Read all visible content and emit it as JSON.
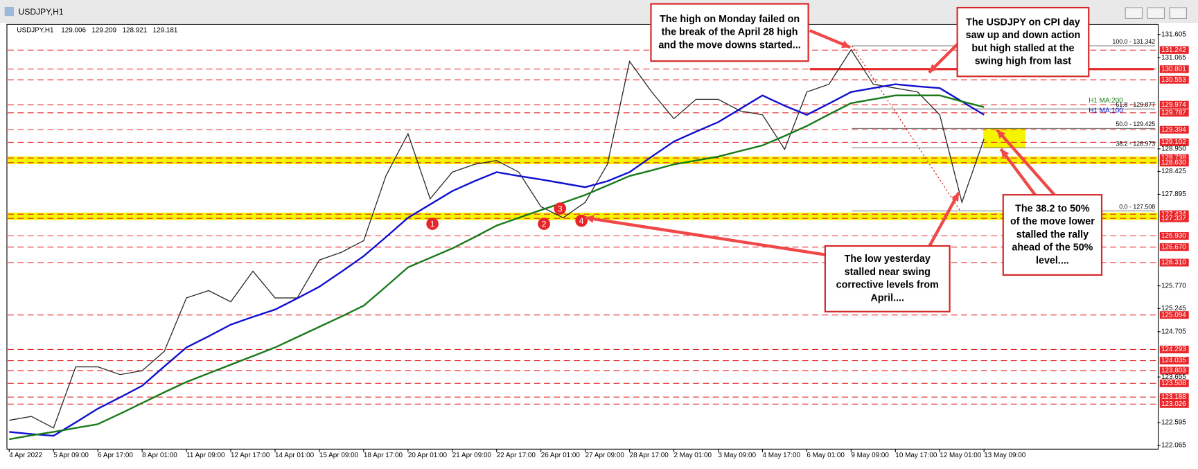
{
  "window_title": "USDJPY,H1",
  "chart_data": {
    "type": "line",
    "header": "USDJPY,H1",
    "ohlc": [
      129.006,
      129.209,
      128.921,
      129.181
    ],
    "categories": [
      "4 Apr 2022",
      null,
      "5 Apr 09:00",
      null,
      "6 Apr 17:00",
      null,
      "8 Apr 01:00",
      null,
      "11 Apr 09:00",
      null,
      "12 Apr 17:00",
      null,
      "14 Apr 01:00",
      null,
      "15 Apr 09:00",
      null,
      "18 Apr 17:00",
      null,
      "20 Apr 01:00",
      null,
      "21 Apr 09:00",
      null,
      "22 Apr 17:00",
      null,
      "26 Apr 01:00",
      null,
      "27 Apr 09:00",
      null,
      "28 Apr 17:00",
      null,
      "2 May 01:00",
      null,
      "3 May 09:00",
      null,
      "4 May 17:00",
      null,
      "6 May 01:00",
      null,
      "9 May 09:00",
      null,
      "10 May 17:00",
      null,
      "12 May 01:00",
      null,
      "13 May 09:00"
    ],
    "series": [
      {
        "name": "USDJPY,H1",
        "color": "#2a2a2a",
        "values": [
          122.65,
          122.74,
          122.47,
          123.89,
          123.89,
          123.71,
          123.8,
          124.25,
          125.49,
          125.66,
          125.4,
          126.11,
          125.49,
          125.49,
          126.37,
          126.55,
          126.82,
          128.32,
          129.3,
          127.79,
          128.41,
          128.59,
          128.68,
          128.41,
          127.61,
          127.35,
          127.71,
          128.59,
          130.98,
          130.27,
          129.65,
          130.1,
          130.1,
          129.83,
          129.74,
          128.94,
          130.27,
          130.45,
          131.25,
          130.45,
          130.36,
          130.27,
          129.74,
          127.71,
          129.181
        ]
      },
      {
        "name": "H1 MA:100",
        "color": "#1010d0",
        "values": [
          122.38,
          122.33,
          122.29,
          122.6,
          122.92,
          123.18,
          123.45,
          123.9,
          124.34,
          124.6,
          124.87,
          125.05,
          125.22,
          125.48,
          125.75,
          126.1,
          126.46,
          126.9,
          127.35,
          127.66,
          127.97,
          128.2,
          128.41,
          128.32,
          128.24,
          128.15,
          128.06,
          128.2,
          128.41,
          128.77,
          129.12,
          129.35,
          129.57,
          129.88,
          130.19,
          129.95,
          129.74,
          130.0,
          130.27,
          130.36,
          130.45,
          130.4,
          130.36,
          130.05,
          129.74
        ]
      },
      {
        "name": "H1 MA:200",
        "color": "#1a7a1a",
        "values": [
          122.21,
          122.3,
          122.38,
          122.47,
          122.56,
          122.8,
          123.05,
          123.3,
          123.54,
          123.74,
          123.94,
          124.14,
          124.34,
          124.58,
          124.82,
          125.06,
          125.31,
          125.75,
          126.2,
          126.42,
          126.64,
          126.9,
          127.17,
          127.35,
          127.53,
          127.7,
          127.88,
          128.1,
          128.32,
          128.45,
          128.59,
          128.68,
          128.77,
          128.9,
          129.03,
          129.25,
          129.48,
          129.75,
          130.01,
          130.1,
          130.19,
          130.19,
          130.19,
          130.05,
          129.92
        ]
      }
    ],
    "ylim": [
      121.98,
      131.82
    ],
    "yticks": [
      131.605,
      131.065,
      {
        "value": 128.95,
        "label": "128.950"
      },
      128.425,
      127.895,
      {
        "value": 125.77,
        "label": "125.770"
      },
      125.245,
      124.705,
      123.655,
      122.595,
      122.065
    ],
    "levels": [
      131.242,
      130.801,
      130.553,
      129.974,
      129.787,
      129.394,
      129.102,
      128.738,
      {
        "value": 128.63,
        "label": "128.630"
      },
      127.434,
      127.337,
      {
        "value": 126.93,
        "label": "126.930"
      },
      {
        "value": 126.67,
        "label": "126.670"
      },
      {
        "value": 126.31,
        "label": "126.310"
      },
      125.094,
      124.293,
      124.035,
      123.803,
      123.508,
      123.188,
      123.026
    ],
    "level_color": "#e8262a",
    "zones": [
      [
        128.63,
        128.738
      ],
      [
        127.337,
        127.434
      ]
    ],
    "zone_color": "#f5f500",
    "fib_levels": [
      {
        "value": 131.342,
        "label": "100.0 - 131.342"
      },
      {
        "value": 129.877,
        "label": "61.8 - 129.877"
      },
      {
        "value": 129.425,
        "label": "50.0 - 129.425"
      },
      {
        "value": 128.973,
        "label": "38.2 - 128.973"
      },
      {
        "value": 127.508,
        "label": "0.0 - 127.508"
      }
    ],
    "markers": [
      "1",
      "2",
      "3",
      "4"
    ],
    "annotations": [
      {
        "lines": [
          "The high on Monday failed on",
          "the break of the April 28 high",
          "and the move downs started..."
        ]
      },
      {
        "lines": [
          "The USDJPY on CPI day",
          "saw up and down action",
          "but high stalled at the",
          "swing high from last"
        ]
      },
      {
        "lines": [
          "The low yesterday",
          "stalled near swing",
          "corrective levels from",
          "April...."
        ]
      },
      {
        "lines": [
          "The 38.2 to 50%",
          "of the move lower",
          "stalled the rally",
          "ahead of the 50%",
          "level...."
        ]
      }
    ]
  }
}
